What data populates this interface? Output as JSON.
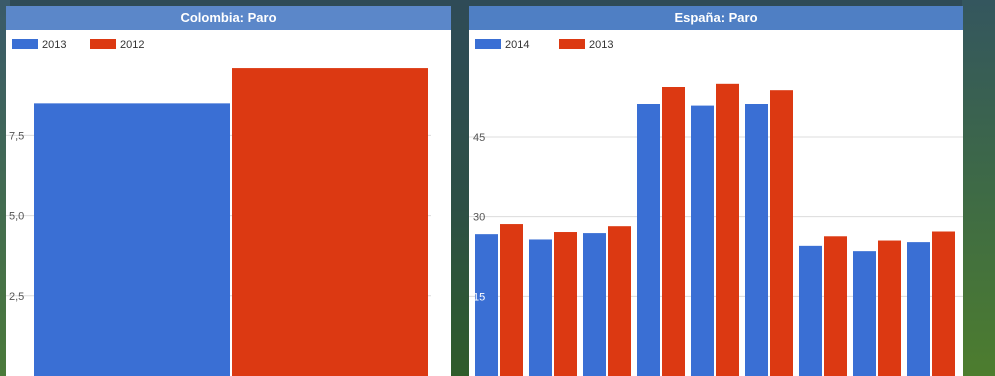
{
  "chart_data": [
    {
      "type": "bar",
      "title": "Colombia: Paro",
      "title_bg": "#5b87c9",
      "series": [
        {
          "name": "2013",
          "color": "#3a6fd4",
          "values": [
            8.5
          ]
        },
        {
          "name": "2012",
          "color": "#dc3912",
          "values": [
            9.6
          ]
        }
      ],
      "categories": [
        ""
      ],
      "yticks": [
        2.5,
        5.0,
        7.5
      ],
      "ytick_labels": [
        "2,5",
        "5,0",
        "7,5"
      ],
      "ylim": [
        0,
        10.6
      ],
      "grid": true,
      "legend": "top-left"
    },
    {
      "type": "bar",
      "title": "España: Paro",
      "title_bg": "#4f7fc4",
      "series": [
        {
          "name": "2014",
          "color": "#3a6fd4",
          "values": [
            26.7,
            25.7,
            26.9,
            51.2,
            50.9,
            51.2,
            24.5,
            23.5,
            25.2
          ]
        },
        {
          "name": "2013",
          "color": "#dc3912",
          "values": [
            28.6,
            27.1,
            28.2,
            54.4,
            55.0,
            53.8,
            26.3,
            25.5,
            27.2
          ]
        }
      ],
      "categories": [
        "",
        "",
        "",
        "",
        "",
        "",
        "",
        "",
        ""
      ],
      "yticks": [
        15,
        30,
        45
      ],
      "ytick_labels": [
        "15",
        "30",
        "45"
      ],
      "ylim": [
        0,
        64
      ],
      "grid": true,
      "legend": "top-left"
    }
  ]
}
